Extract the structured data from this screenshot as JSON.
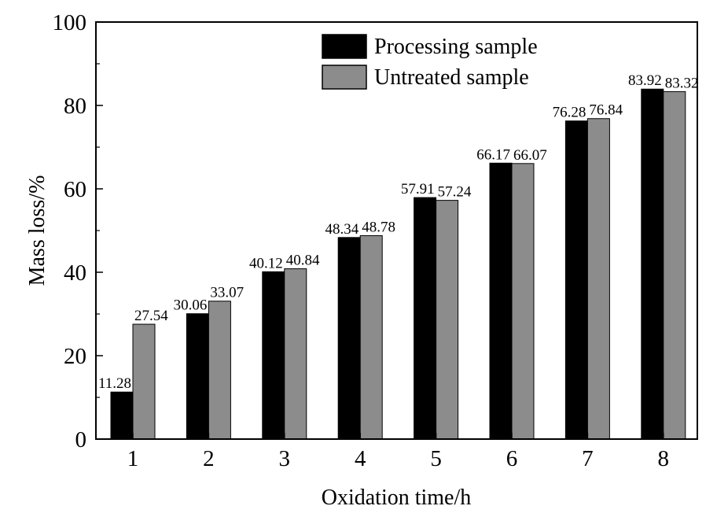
{
  "chart_data": {
    "type": "bar",
    "title": "",
    "xlabel": "Oxidation time/h",
    "ylabel": "Mass loss/%",
    "categories": [
      "1",
      "2",
      "3",
      "4",
      "5",
      "6",
      "7",
      "8"
    ],
    "series": [
      {
        "name": "Processing sample",
        "color": "#000000",
        "values": [
          11.28,
          30.06,
          40.12,
          48.34,
          57.91,
          66.17,
          76.28,
          83.92
        ],
        "labels": [
          "11.28",
          "30.06",
          "40.12",
          "48.34",
          "57.91",
          "66.17",
          "76.28",
          "83.92"
        ]
      },
      {
        "name": "Untreated sample",
        "color": "#8c8c8c",
        "values": [
          27.54,
          33.07,
          40.84,
          48.78,
          57.24,
          66.07,
          76.84,
          83.32
        ],
        "labels": [
          "27.54",
          "33.07",
          "40.84",
          "48.78",
          "57.24",
          "66.07",
          "76.84",
          "83.32"
        ]
      }
    ],
    "ylim": [
      0,
      100
    ],
    "yticks": [
      "0",
      "20",
      "40",
      "60",
      "80",
      "100"
    ],
    "grid": false,
    "legend_position": "top-center"
  }
}
